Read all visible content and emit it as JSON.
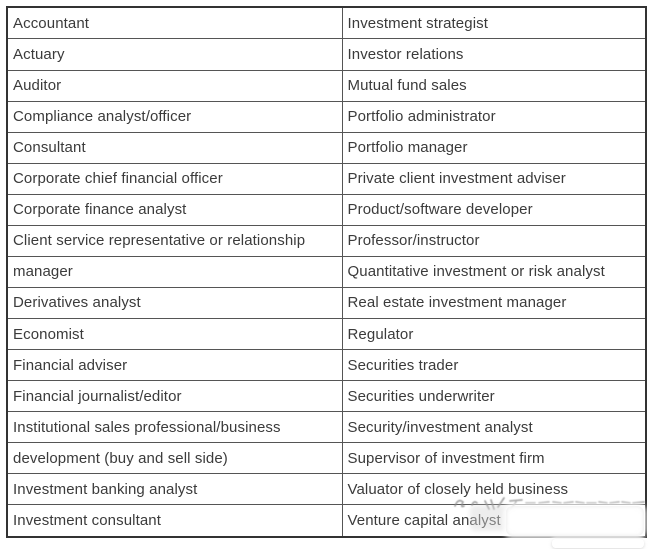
{
  "page": {
    "background_color": "#ffffff",
    "text_color": "#3b3b3b",
    "border_color": "#555555"
  },
  "table": {
    "columns": 2,
    "rows": [
      {
        "left": "Accountant",
        "right": "Investment strategist"
      },
      {
        "left": "Actuary",
        "right": "Investor relations"
      },
      {
        "left": "Auditor",
        "right": "Mutual fund sales"
      },
      {
        "left": "Compliance analyst/officer",
        "right": "Portfolio administrator"
      },
      {
        "left": "Consultant",
        "right": "Portfolio manager"
      },
      {
        "left": "Corporate chief financial officer",
        "right": "Private client investment adviser"
      },
      {
        "left": "Corporate finance analyst",
        "right": "Product/software developer"
      },
      {
        "left": "Client service representative or relationship",
        "right": "Professor/instructor"
      },
      {
        "left": "manager",
        "right": "Quantitative investment or risk analyst"
      },
      {
        "left": "Derivatives analyst",
        "right": "Real estate investment manager"
      },
      {
        "left": "Economist",
        "right": "Regulator"
      },
      {
        "left": "Financial adviser",
        "right": "Securities trader"
      },
      {
        "left": "Financial journalist/editor",
        "right": "Securities underwriter"
      },
      {
        "left": "Institutional sales professional/business",
        "right": "Security/investment analyst"
      },
      {
        "left": "development (buy and sell side)",
        "right": "Supervisor of investment firm"
      },
      {
        "left": "Investment banking analyst",
        "right": "Valuator of closely held business"
      },
      {
        "left": "Investment consultant",
        "right": "Venture capital analyst"
      }
    ]
  }
}
